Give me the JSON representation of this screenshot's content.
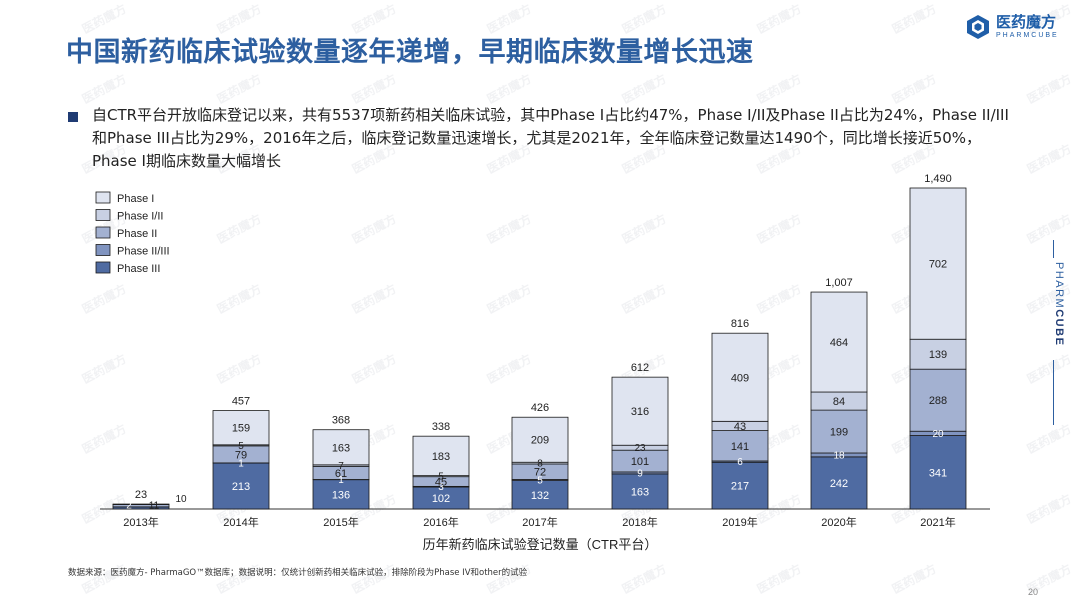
{
  "header": {
    "title": "中国新药临床试验数量逐年递增，早期临床数量增长迅速",
    "logo_cn": "医药魔方",
    "logo_en": "PHARMCUBE",
    "side_label_a": "PHARM",
    "side_label_b": "CUBE"
  },
  "summary": "自CTR平台开放临床登记以来，共有5537项新药相关临床试验，其中Phase I占比约47%，Phase I/II及Phase II占比为24%，Phase II/III和Phase III占比为29%，2016年之后，临床登记数量迅速增长，尤其是2021年，全年临床登记数量达1490个，同比增长接近50%，Phase I期临床数量大幅增长",
  "footer": {
    "source": "数据来源：医药魔方- PharmaGO™数据库；数据说明：仅统计创新药相关临床试验，排除阶段为Phase IV和other的试验",
    "page": "20"
  },
  "watermark": "医药魔方",
  "colors": {
    "title": "#2d5fa0",
    "phase_i": "#dfe4f0",
    "phase_i_ii": "#c8d0e3",
    "phase_ii": "#a3b1d1",
    "phase_ii_iii": "#8094c0",
    "phase_iii": "#4f6ba2"
  },
  "chart_data": {
    "type": "bar",
    "stacked": true,
    "xlabel": "历年新药临床试验登记数量（CTR平台）",
    "categories": [
      "2013年",
      "2014年",
      "2015年",
      "2016年",
      "2017年",
      "2018年",
      "2019年",
      "2020年",
      "2021年"
    ],
    "totals": [
      "23",
      "457",
      "368",
      "338",
      "426",
      "612",
      "816",
      "1,007",
      "1,490"
    ],
    "legend_position": "top-left",
    "series": [
      {
        "name": "Phase III",
        "values": [
          10,
          213,
          136,
          102,
          132,
          163,
          217,
          242,
          341
        ]
      },
      {
        "name": "Phase II/III",
        "values": [
          0,
          1,
          1,
          3,
          5,
          9,
          6,
          18,
          20
        ]
      },
      {
        "name": "Phase II",
        "values": [
          11,
          79,
          61,
          45,
          72,
          101,
          141,
          199,
          288
        ]
      },
      {
        "name": "Phase I/II",
        "values": [
          0,
          5,
          7,
          5,
          8,
          23,
          43,
          84,
          139
        ]
      },
      {
        "name": "Phase I",
        "values": [
          2,
          159,
          163,
          183,
          209,
          316,
          409,
          464,
          702
        ]
      }
    ],
    "legend_order": [
      "Phase I",
      "Phase I/II",
      "Phase II",
      "Phase II/III",
      "Phase III"
    ]
  }
}
